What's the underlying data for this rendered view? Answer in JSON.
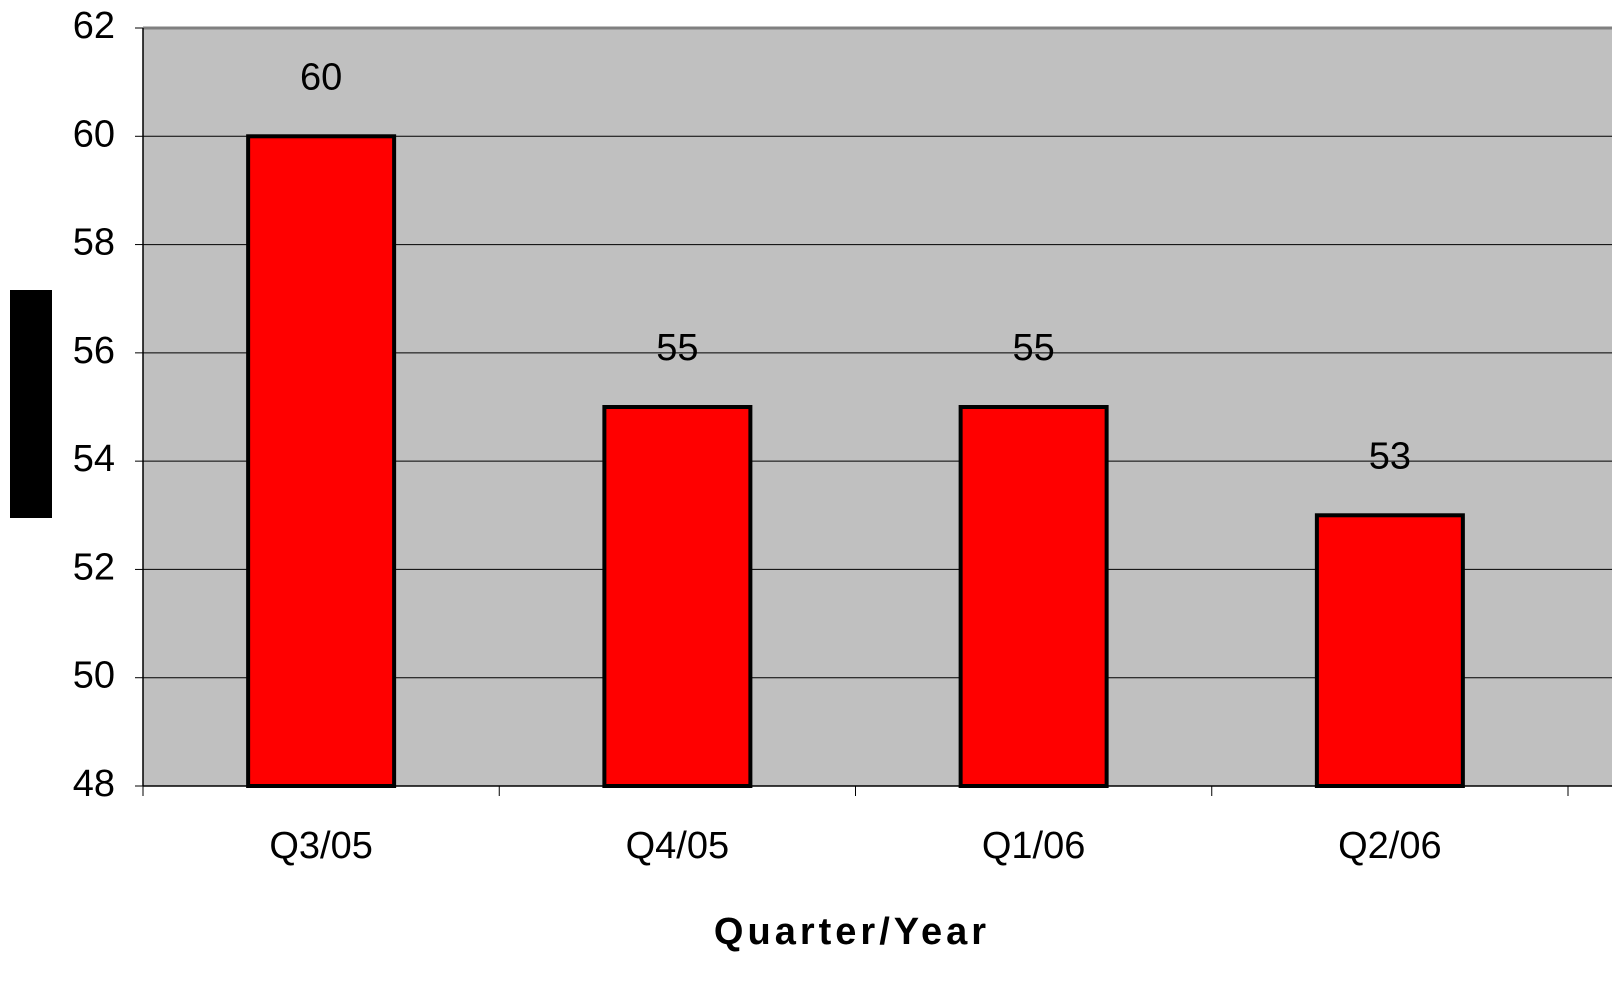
{
  "chart_data": {
    "type": "bar",
    "x_label": "Quarter/Year",
    "categories": [
      "Q3/05",
      "Q4/05",
      "Q1/06",
      "Q2/06"
    ],
    "values": [
      60,
      55,
      55,
      53
    ],
    "color": "#ff0000",
    "ylim": [
      48,
      62
    ],
    "yticks": [
      48,
      50,
      52,
      54,
      56,
      58,
      60,
      62
    ],
    "grid": true,
    "plot_background": "#c0c0c0"
  }
}
